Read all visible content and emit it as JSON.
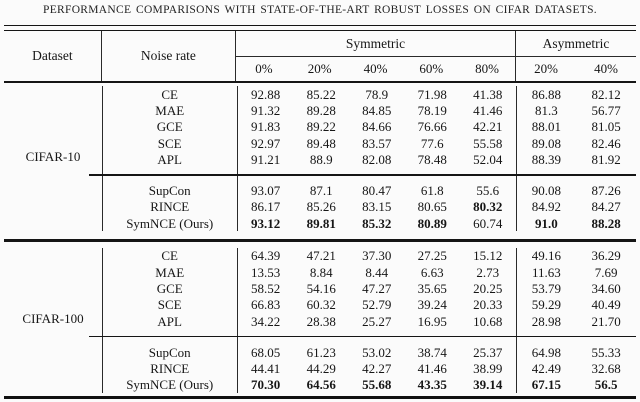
{
  "caption": "PERFORMANCE COMPARISONS WITH STATE-OF-THE-ART ROBUST LOSSES ON CIFAR DATASETS.",
  "table": {
    "header": {
      "dataset": "Dataset",
      "noise_rate": "Noise rate",
      "symmetric": "Symmetric",
      "asymmetric": "Asymmetric",
      "symmetric_cols": [
        "0%",
        "20%",
        "40%",
        "60%",
        "80%"
      ],
      "asymmetric_cols": [
        "20%",
        "40%"
      ]
    },
    "sections": [
      {
        "dataset": "CIFAR-10",
        "groups": [
          {
            "rows": [
              {
                "method": "CE",
                "values": [
                  "92.88",
                  "85.22",
                  "78.9",
                  "71.98",
                  "41.38",
                  "86.88",
                  "82.12"
                ],
                "bold": []
              },
              {
                "method": "MAE",
                "values": [
                  "91.32",
                  "89.28",
                  "84.85",
                  "78.19",
                  "41.46",
                  "81.3",
                  "56.77"
                ],
                "bold": []
              },
              {
                "method": "GCE",
                "values": [
                  "91.83",
                  "89.22",
                  "84.66",
                  "76.66",
                  "42.21",
                  "88.01",
                  "81.05"
                ],
                "bold": []
              },
              {
                "method": "SCE",
                "values": [
                  "92.97",
                  "89.48",
                  "83.57",
                  "77.6",
                  "55.58",
                  "89.08",
                  "82.46"
                ],
                "bold": []
              },
              {
                "method": "APL",
                "values": [
                  "91.21",
                  "88.9",
                  "82.08",
                  "78.48",
                  "52.04",
                  "88.39",
                  "81.92"
                ],
                "bold": []
              }
            ]
          },
          {
            "rows": [
              {
                "method": "SupCon",
                "values": [
                  "93.07",
                  "87.1",
                  "80.47",
                  "61.8",
                  "55.6",
                  "90.08",
                  "87.26"
                ],
                "bold": []
              },
              {
                "method": "RINCE",
                "values": [
                  "86.17",
                  "85.26",
                  "83.15",
                  "80.65",
                  "80.32",
                  "84.92",
                  "84.27"
                ],
                "bold": [
                  4
                ]
              },
              {
                "method": "SymNCE (Ours)",
                "values": [
                  "93.12",
                  "89.81",
                  "85.32",
                  "80.89",
                  "60.74",
                  "91.0",
                  "88.28"
                ],
                "bold": [
                  0,
                  1,
                  2,
                  3,
                  5,
                  6
                ]
              }
            ]
          }
        ]
      },
      {
        "dataset": "CIFAR-100",
        "groups": [
          {
            "rows": [
              {
                "method": "CE",
                "values": [
                  "64.39",
                  "47.21",
                  "37.30",
                  "27.25",
                  "15.12",
                  "49.16",
                  "36.29"
                ],
                "bold": []
              },
              {
                "method": "MAE",
                "values": [
                  "13.53",
                  "8.84",
                  "8.44",
                  "6.63",
                  "2.73",
                  "11.63",
                  "7.69"
                ],
                "bold": []
              },
              {
                "method": "GCE",
                "values": [
                  "58.52",
                  "54.16",
                  "47.27",
                  "35.65",
                  "20.25",
                  "53.79",
                  "34.60"
                ],
                "bold": []
              },
              {
                "method": "SCE",
                "values": [
                  "66.83",
                  "60.32",
                  "52.79",
                  "39.24",
                  "20.33",
                  "59.29",
                  "40.49"
                ],
                "bold": []
              },
              {
                "method": "APL",
                "values": [
                  "34.22",
                  "28.38",
                  "25.27",
                  "16.95",
                  "10.68",
                  "28.98",
                  "21.70"
                ],
                "bold": []
              }
            ]
          },
          {
            "rows": [
              {
                "method": "SupCon",
                "values": [
                  "68.05",
                  "61.23",
                  "53.02",
                  "38.74",
                  "25.37",
                  "64.98",
                  "55.33"
                ],
                "bold": []
              },
              {
                "method": "RINCE",
                "values": [
                  "44.41",
                  "44.29",
                  "42.27",
                  "41.46",
                  "38.99",
                  "42.49",
                  "32.68"
                ],
                "bold": []
              },
              {
                "method": "SymNCE (Ours)",
                "values": [
                  "70.30",
                  "64.56",
                  "55.68",
                  "43.35",
                  "39.14",
                  "67.15",
                  "56.5"
                ],
                "bold": [
                  0,
                  1,
                  2,
                  3,
                  4,
                  5,
                  6
                ]
              }
            ]
          }
        ]
      }
    ]
  }
}
